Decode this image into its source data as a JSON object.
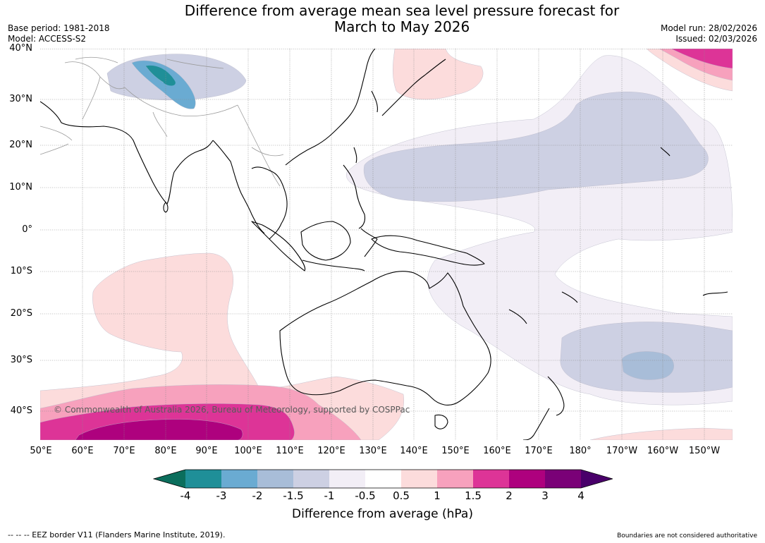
{
  "title": {
    "line1": "Difference from average mean sea level pressure forecast for",
    "line2": "March to May 2026"
  },
  "meta_left": {
    "base_period": "Base period: 1981-2018",
    "model": "Model: ACCESS-S2"
  },
  "meta_right": {
    "model_run": "Model run: 28/02/2026",
    "issued": "Issued: 02/03/2026"
  },
  "lat_labels": [
    "40°N",
    "30°N",
    "20°N",
    "10°N",
    "0°",
    "10°S",
    "20°S",
    "30°S",
    "40°S"
  ],
  "lon_labels": [
    "50°E",
    "60°E",
    "70°E",
    "80°E",
    "90°E",
    "100°E",
    "110°E",
    "120°E",
    "130°E",
    "140°E",
    "150°E",
    "160°E",
    "170°E",
    "180°",
    "170°W",
    "160°W",
    "150°W"
  ],
  "copyright": "© Commonwealth of Australia 2026, Bureau of Meteorology, supported by COSPPac",
  "colorbar": {
    "ticks": [
      "-4",
      "-3",
      "-2",
      "-1.5",
      "-1",
      "-0.5",
      "0.5",
      "1",
      "1.5",
      "2",
      "3",
      "4"
    ],
    "colors": {
      "below": "#0b6e5c",
      "bins": [
        "#1f8f98",
        "#6aabd2",
        "#a8bdd8",
        "#cdd0e3",
        "#f2eef6",
        "#ffffff",
        "#fcdcdc",
        "#f7a1bd",
        "#dd3497",
        "#ae017e",
        "#7a0177"
      ],
      "above": "#49006a"
    },
    "label": "Difference from average (hPa)"
  },
  "footer": {
    "eez": "--  --  -- EEZ border V11 (Flanders Marine Institute, 2019).",
    "disclaimer": "Boundaries are not considered authoritative"
  }
}
